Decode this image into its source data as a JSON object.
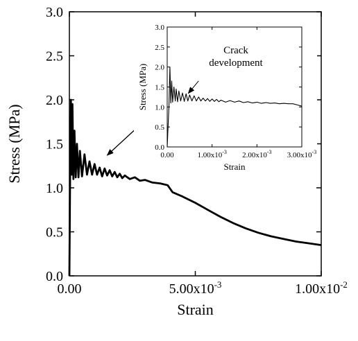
{
  "chart_data": [
    {
      "type": "line",
      "panel": "main",
      "title": "",
      "xlabel": "Strain",
      "ylabel": "Stress (MPa)",
      "xlim": [
        0,
        0.01
      ],
      "ylim": [
        0,
        3.0
      ],
      "x_ticks": [
        0,
        0.005,
        0.01
      ],
      "x_tick_labels": [
        {
          "base": "0.00",
          "exp": ""
        },
        {
          "base": "5.00x10",
          "exp": "-3"
        },
        {
          "base": "1.00x10",
          "exp": "-2"
        }
      ],
      "y_ticks": [
        0.0,
        0.5,
        1.0,
        1.5,
        2.0,
        2.5,
        3.0
      ],
      "y_tick_labels": [
        "0.0",
        "0.5",
        "1.0",
        "1.5",
        "2.0",
        "2.5",
        "3.0"
      ],
      "grid": false,
      "legend": "none",
      "series": [
        {
          "color": "#000000",
          "points": [
            [
              0,
              0
            ],
            [
              3e-05,
              1.2
            ],
            [
              6e-05,
              2.0
            ],
            [
              9e-05,
              1.15
            ],
            [
              0.00012,
              1.95
            ],
            [
              0.00016,
              1.1
            ],
            [
              0.0002,
              1.65
            ],
            [
              0.00025,
              1.12
            ],
            [
              0.0003,
              1.5
            ],
            [
              0.00036,
              1.12
            ],
            [
              0.00042,
              1.42
            ],
            [
              0.0005,
              1.13
            ],
            [
              0.0006,
              1.38
            ],
            [
              0.0007,
              1.15
            ],
            [
              0.0008,
              1.3
            ],
            [
              0.0009,
              1.15
            ],
            [
              0.001,
              1.27
            ],
            [
              0.0011,
              1.15
            ],
            [
              0.0012,
              1.23
            ],
            [
              0.0013,
              1.13
            ],
            [
              0.0014,
              1.22
            ],
            [
              0.0015,
              1.14
            ],
            [
              0.0016,
              1.2
            ],
            [
              0.0017,
              1.13
            ],
            [
              0.0018,
              1.18
            ],
            [
              0.0019,
              1.12
            ],
            [
              0.002,
              1.16
            ],
            [
              0.0021,
              1.11
            ],
            [
              0.0022,
              1.14
            ],
            [
              0.0024,
              1.1
            ],
            [
              0.0026,
              1.12
            ],
            [
              0.0028,
              1.08
            ],
            [
              0.003,
              1.09
            ],
            [
              0.0033,
              1.06
            ],
            [
              0.0036,
              1.05
            ],
            [
              0.0039,
              1.03
            ],
            [
              0.0041,
              0.95
            ],
            [
              0.0045,
              0.9
            ],
            [
              0.005,
              0.83
            ],
            [
              0.0055,
              0.75
            ],
            [
              0.006,
              0.67
            ],
            [
              0.0065,
              0.6
            ],
            [
              0.007,
              0.54
            ],
            [
              0.0075,
              0.49
            ],
            [
              0.008,
              0.45
            ],
            [
              0.0085,
              0.42
            ],
            [
              0.009,
              0.39
            ],
            [
              0.0095,
              0.37
            ],
            [
              0.01,
              0.35
            ]
          ]
        }
      ],
      "annotations": [
        {
          "type": "arrow",
          "from": [
            0.0037,
            1.95
          ],
          "to": [
            0.0015,
            1.37
          ]
        }
      ]
    },
    {
      "type": "line",
      "panel": "inset",
      "title": "",
      "xlabel": "Strain",
      "ylabel": "Stress (MPa)",
      "xlim": [
        0,
        0.003
      ],
      "ylim": [
        0,
        3.0
      ],
      "x_ticks": [
        0,
        0.001,
        0.002,
        0.003
      ],
      "x_tick_labels": [
        {
          "base": "0.00",
          "exp": ""
        },
        {
          "base": "1.00x10",
          "exp": "-3"
        },
        {
          "base": "2.00x10",
          "exp": "-3"
        },
        {
          "base": "3.00x10",
          "exp": "-3"
        }
      ],
      "y_ticks": [
        0.0,
        0.5,
        1.0,
        1.5,
        2.0,
        2.5,
        3.0
      ],
      "y_tick_labels": [
        "0.0",
        "0.5",
        "1.0",
        "1.5",
        "2.0",
        "2.5",
        "3.0"
      ],
      "grid": false,
      "legend": "none",
      "series": [
        {
          "color": "#000000",
          "points": [
            [
              0,
              0
            ],
            [
              4e-05,
              1.05
            ],
            [
              6e-05,
              2.0
            ],
            [
              8e-05,
              1.1
            ],
            [
              0.0001,
              1.65
            ],
            [
              0.00012,
              1.12
            ],
            [
              0.00015,
              1.5
            ],
            [
              0.00018,
              1.15
            ],
            [
              0.0002,
              1.45
            ],
            [
              0.00023,
              1.13
            ],
            [
              0.00026,
              1.4
            ],
            [
              0.0003,
              1.15
            ],
            [
              0.00034,
              1.35
            ],
            [
              0.00038,
              1.14
            ],
            [
              0.00042,
              1.33
            ],
            [
              0.00046,
              1.15
            ],
            [
              0.0005,
              1.3
            ],
            [
              0.00055,
              1.15
            ],
            [
              0.0006,
              1.28
            ],
            [
              0.00065,
              1.15
            ],
            [
              0.0007,
              1.25
            ],
            [
              0.00075,
              1.15
            ],
            [
              0.0008,
              1.22
            ],
            [
              0.00085,
              1.15
            ],
            [
              0.0009,
              1.21
            ],
            [
              0.00095,
              1.14
            ],
            [
              0.001,
              1.2
            ],
            [
              0.00105,
              1.14
            ],
            [
              0.0011,
              1.19
            ],
            [
              0.00115,
              1.13
            ],
            [
              0.0012,
              1.17
            ],
            [
              0.0013,
              1.12
            ],
            [
              0.0014,
              1.16
            ],
            [
              0.0015,
              1.12
            ],
            [
              0.0016,
              1.15
            ],
            [
              0.0017,
              1.11
            ],
            [
              0.0018,
              1.13
            ],
            [
              0.0019,
              1.1
            ],
            [
              0.002,
              1.12
            ],
            [
              0.0021,
              1.09
            ],
            [
              0.0022,
              1.11
            ],
            [
              0.0023,
              1.09
            ],
            [
              0.0024,
              1.1
            ],
            [
              0.0025,
              1.08
            ],
            [
              0.0026,
              1.09
            ],
            [
              0.0027,
              1.08
            ],
            [
              0.0028,
              1.08
            ],
            [
              0.0029,
              1.05
            ],
            [
              0.003,
              1.02
            ]
          ]
        }
      ],
      "annotations": [
        {
          "type": "text",
          "lines": [
            "Crack",
            "development"
          ]
        },
        {
          "type": "arrow",
          "from": [
            0.0007,
            1.65
          ],
          "to": [
            0.00047,
            1.34
          ]
        }
      ]
    }
  ]
}
